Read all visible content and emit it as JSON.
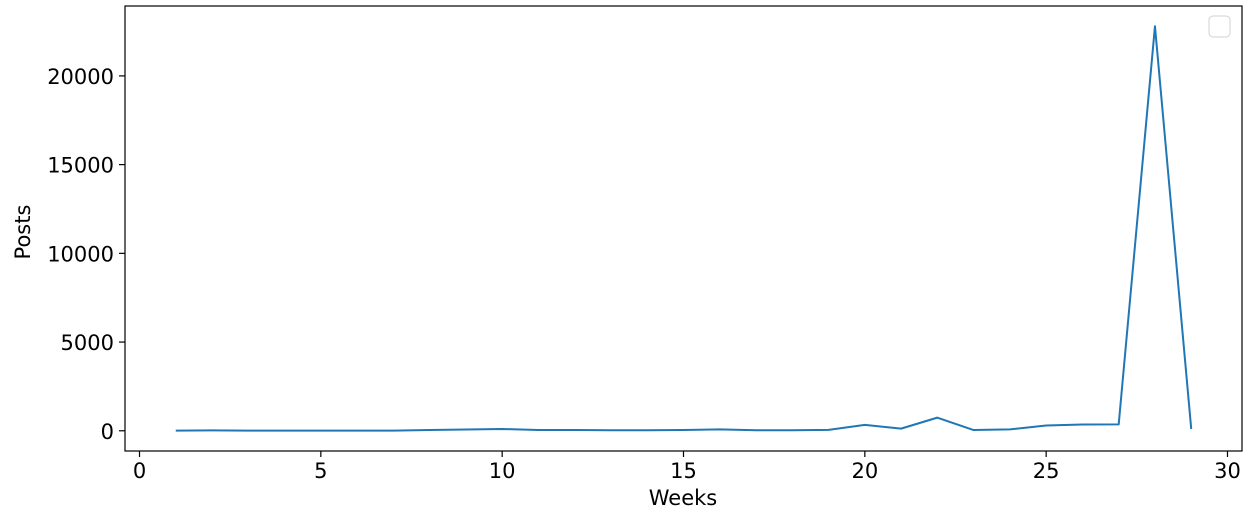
{
  "chart_data": {
    "type": "line",
    "title": "",
    "xlabel": "Weeks",
    "ylabel": "Posts",
    "xlim": [
      -0.4,
      30.4
    ],
    "ylim": [
      -1140,
      23940
    ],
    "xticks": [
      0,
      5,
      10,
      15,
      20,
      25,
      30
    ],
    "yticks": [
      0,
      5000,
      10000,
      15000,
      20000
    ],
    "grid": false,
    "legend": "top-right, empty box",
    "line_color": "#1f77b4",
    "series": [
      {
        "x": [
          1,
          2,
          3,
          4,
          5,
          6,
          7,
          8,
          9,
          10,
          11,
          12,
          13,
          14,
          15,
          16,
          17,
          18,
          19,
          20,
          21,
          22,
          23,
          24,
          25,
          26,
          27,
          28,
          29
        ],
        "values": [
          10,
          20,
          10,
          10,
          5,
          5,
          10,
          40,
          70,
          100,
          40,
          40,
          30,
          30,
          40,
          80,
          30,
          30,
          50,
          330,
          120,
          740,
          40,
          80,
          300,
          350,
          360,
          22800,
          100
        ]
      }
    ]
  }
}
